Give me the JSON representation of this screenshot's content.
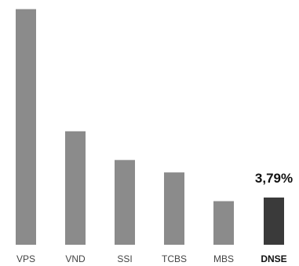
{
  "chart_data": {
    "type": "bar",
    "categories": [
      "VPS",
      "VND",
      "SSI",
      "TCBS",
      "MBS",
      "DNSE"
    ],
    "values": [
      18.9,
      9.1,
      6.8,
      5.8,
      3.5,
      3.79
    ],
    "highlight": {
      "category": "DNSE",
      "label": "3,79%"
    },
    "colors": {
      "bar": "#8b8b8b",
      "highlight_bar": "#3a3a3a",
      "tick_label": "#444444",
      "highlight_label": "#111111"
    },
    "title": "",
    "xlabel": "",
    "ylabel": "",
    "ylim": [
      0,
      19
    ],
    "grid": false,
    "axes_visible": false
  }
}
